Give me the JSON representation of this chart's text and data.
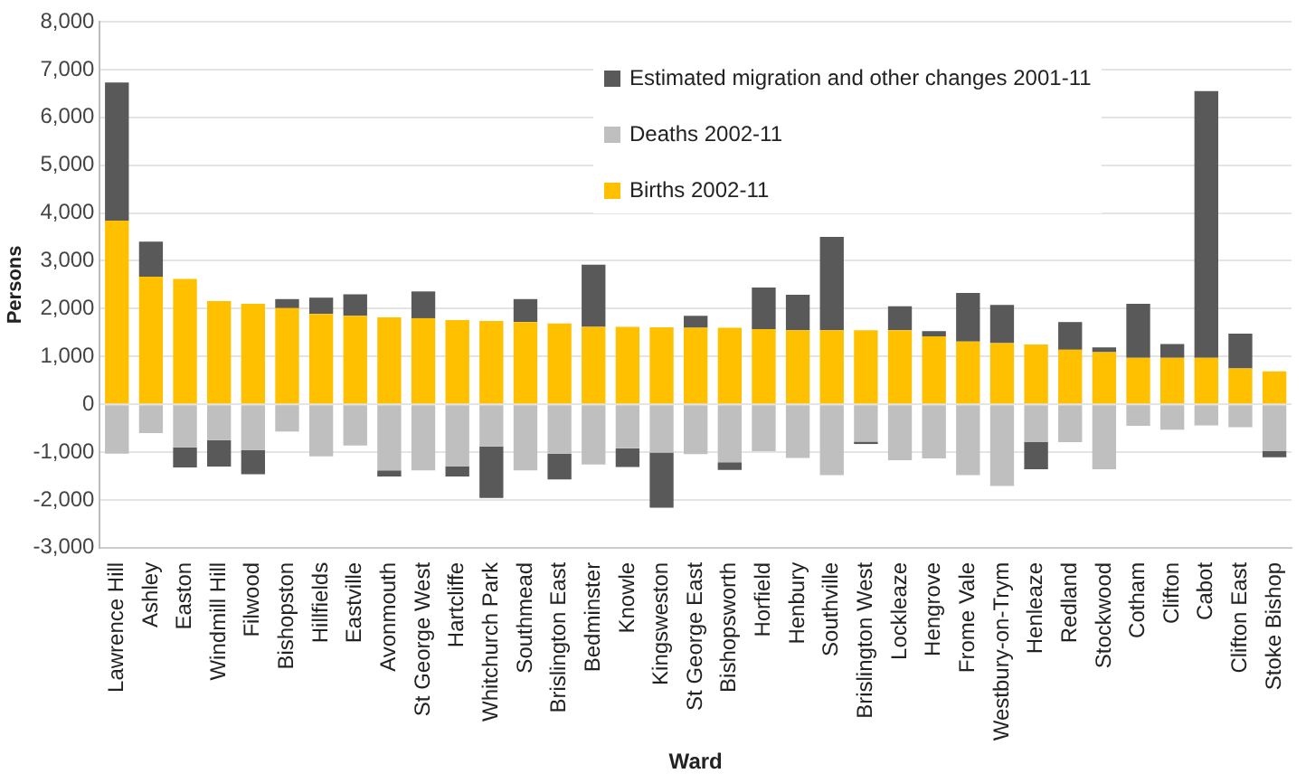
{
  "chart_data": {
    "type": "bar",
    "stacked": true,
    "xlabel": "Ward",
    "ylabel": "Persons",
    "categories": [
      "Lawrence Hill",
      "Ashley",
      "Easton",
      "Windmill Hill",
      "Filwood",
      "Bishopston",
      "Hillfields",
      "Eastville",
      "Avonmouth",
      "St George West",
      "Hartcliffe",
      "Whitchurch Park",
      "Southmead",
      "Brislington East",
      "Bedminster",
      "Knowle",
      "Kingsweston",
      "St George East",
      "Bishopsworth",
      "Horfield",
      "Henbury",
      "Southville",
      "Brislington West",
      "Lockleaze",
      "Hengrove",
      "Frome Vale",
      "Westbury-on-Trym",
      "Henleaze",
      "Redland",
      "Stockwood",
      "Cotham",
      "Clifton",
      "Cabot",
      "Clifton East",
      "Stoke Bishop"
    ],
    "series": [
      {
        "name": "Births 2002-11",
        "color": "#ffc000",
        "values": [
          3840,
          2670,
          2620,
          2160,
          2100,
          2010,
          1890,
          1850,
          1820,
          1800,
          1760,
          1740,
          1720,
          1690,
          1620,
          1620,
          1610,
          1600,
          1600,
          1570,
          1550,
          1550,
          1550,
          1550,
          1420,
          1310,
          1280,
          1250,
          1140,
          1090,
          970,
          970,
          970,
          750,
          690
        ]
      },
      {
        "name": "Deaths 2002-11",
        "color": "#bfbfbf",
        "values": [
          -1030,
          -600,
          -900,
          -750,
          -960,
          -570,
          -1090,
          -860,
          -1380,
          -1380,
          -1300,
          -880,
          -1380,
          -1030,
          -1260,
          -920,
          -1010,
          -1040,
          -1210,
          -980,
          -1120,
          -1480,
          -780,
          -1170,
          -1130,
          -1480,
          -1710,
          -790,
          -790,
          -1360,
          -450,
          -530,
          -440,
          -480,
          -980
        ]
      },
      {
        "name": "Estimated migration and other changes 2001-11",
        "color": "#595959",
        "values": [
          2890,
          730,
          -420,
          -550,
          -500,
          190,
          340,
          450,
          -130,
          560,
          -210,
          -1080,
          480,
          -540,
          1300,
          -390,
          -1150,
          250,
          -160,
          870,
          740,
          1950,
          -50,
          500,
          110,
          1020,
          800,
          -570,
          580,
          100,
          1130,
          290,
          5580,
          730,
          -130
        ]
      }
    ],
    "ylim": [
      -3000,
      8000
    ],
    "yticks": [
      {
        "value": -3000,
        "label": "-3,000"
      },
      {
        "value": -2000,
        "label": "-2,000"
      },
      {
        "value": -1000,
        "label": "-1,000"
      },
      0,
      {
        "value": 1000,
        "label": "1,000"
      },
      {
        "value": 2000,
        "label": "2,000"
      },
      {
        "value": 3000,
        "label": "3,000"
      },
      {
        "value": 4000,
        "label": "4,000"
      },
      {
        "value": 5000,
        "label": "5,000"
      },
      {
        "value": 6000,
        "label": "6,000"
      },
      {
        "value": 7000,
        "label": "7,000"
      },
      {
        "value": 8000,
        "label": "8,000"
      }
    ],
    "grid": "y",
    "legend": "top right"
  }
}
